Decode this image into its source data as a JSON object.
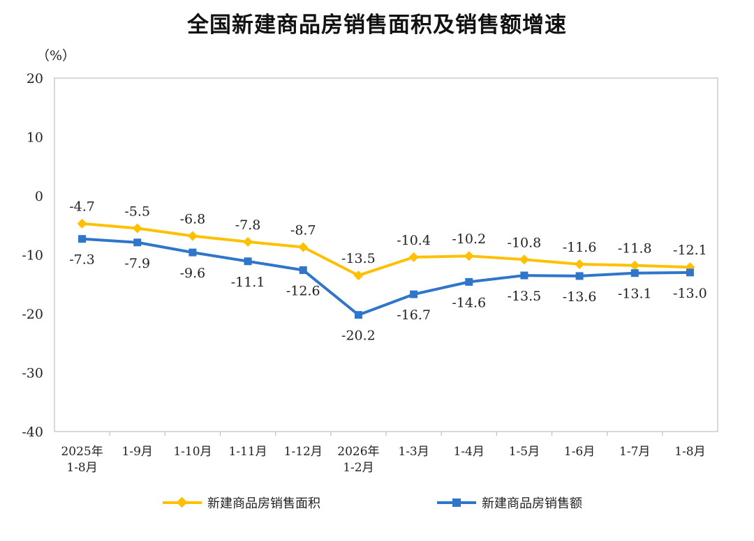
{
  "chart_data": {
    "type": "line",
    "title": "全国新建商品房销售面积及销售额增速",
    "ylabel": "（%）",
    "ylim": [
      -40,
      20
    ],
    "yticks": [
      20,
      10,
      0,
      -10,
      -20,
      -30,
      -40
    ],
    "categories": [
      [
        "2025年",
        "1-8月"
      ],
      [
        "1-9月"
      ],
      [
        "1-10月"
      ],
      [
        "1-11月"
      ],
      [
        "1-12月"
      ],
      [
        "2026年",
        "1-2月"
      ],
      [
        "1-3月"
      ],
      [
        "1-4月"
      ],
      [
        "1-5月"
      ],
      [
        "1-6月"
      ],
      [
        "1-7月"
      ],
      [
        "1-8月"
      ]
    ],
    "series": [
      {
        "name": "新建商品房销售面积",
        "color": "#FFC000",
        "marker": "diamond",
        "values": [
          -4.7,
          -5.5,
          -6.8,
          -7.8,
          -8.7,
          -13.5,
          -10.4,
          -10.2,
          -10.8,
          -11.6,
          -11.8,
          -12.1
        ],
        "labels": [
          "-4.7",
          "-5.5",
          "-6.8",
          "-7.8",
          "-8.7",
          "-13.5",
          "-10.4",
          "-10.2",
          "-10.8",
          "-11.6",
          "-11.8",
          "-12.1"
        ],
        "label_position": "above"
      },
      {
        "name": "新建商品房销售额",
        "color": "#2F75C9",
        "marker": "square",
        "values": [
          -7.3,
          -7.9,
          -9.6,
          -11.1,
          -12.6,
          -20.2,
          -16.7,
          -14.6,
          -13.5,
          -13.6,
          -13.1,
          -13.0
        ],
        "labels": [
          "-7.3",
          "-7.9",
          "-9.6",
          "-11.1",
          "-12.6",
          "-20.2",
          "-16.7",
          "-14.6",
          "-13.5",
          "-13.6",
          "-13.1",
          "-13.0"
        ],
        "label_position": "below"
      }
    ],
    "grid": false,
    "legend_position": "bottom"
  }
}
